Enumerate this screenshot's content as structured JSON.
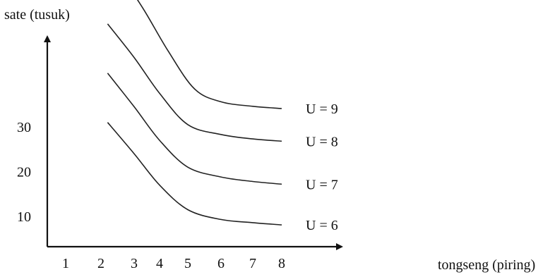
{
  "chart_data": {
    "type": "line",
    "title": "",
    "xlabel": "tongseng (piring)",
    "ylabel": "sate (tusuk)",
    "x_ticks": [
      "1",
      "2",
      "3",
      "4",
      "5",
      "6",
      "7",
      "8"
    ],
    "y_ticks": [
      "10",
      "20",
      "30"
    ],
    "grid": false,
    "series": [
      {
        "name": "U = 6",
        "points": [
          [
            2.2,
            31
          ],
          [
            3,
            24
          ],
          [
            4,
            17
          ],
          [
            5,
            11.5
          ],
          [
            6,
            9.3
          ],
          [
            7,
            8.6
          ],
          [
            8,
            8.1
          ]
        ]
      },
      {
        "name": "U = 7",
        "points": [
          [
            2.2,
            42
          ],
          [
            3,
            34.5
          ],
          [
            4,
            27
          ],
          [
            5,
            21
          ],
          [
            6,
            18.8
          ],
          [
            7,
            17.8
          ],
          [
            8,
            17.2
          ]
        ]
      },
      {
        "name": "U = 8",
        "points": [
          [
            2.2,
            53
          ],
          [
            3,
            45.5
          ],
          [
            4,
            37.5
          ],
          [
            5,
            30.5
          ],
          [
            6,
            28.3
          ],
          [
            7,
            27.3
          ],
          [
            8,
            26.8
          ]
        ]
      },
      {
        "name": "U = 9",
        "points": [
          [
            2.6,
            64
          ],
          [
            3.4,
            56
          ],
          [
            4.3,
            47
          ],
          [
            5.2,
            38.5
          ],
          [
            6,
            35.6
          ],
          [
            7,
            34.6
          ],
          [
            8,
            34.1
          ]
        ]
      }
    ]
  }
}
